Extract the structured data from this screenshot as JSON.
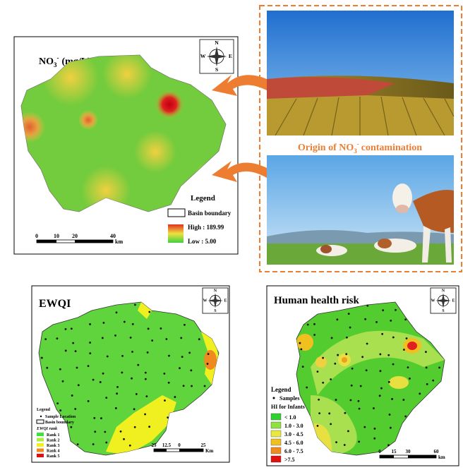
{
  "no3_map": {
    "title": {
      "base": "NO",
      "sub": "3",
      "sup": "-",
      "unit": "(mg/L)"
    },
    "north": {
      "n": "N",
      "s": "S",
      "e": "E",
      "w": "W"
    },
    "legend": {
      "title": "Legend",
      "boundary": "Basin boundary",
      "high": "High : 189.99",
      "low": "Low : 5.00"
    },
    "scale": {
      "ticks": [
        "0",
        "10",
        "20",
        "40"
      ],
      "unit": "km"
    }
  },
  "origin": {
    "label": {
      "pre": "Origin of NO",
      "sub": "3",
      "sup": "-",
      "post": "contamination"
    }
  },
  "ewqi_map": {
    "title": "EWQI",
    "legend": {
      "title": "Legend",
      "sample": "Sample Location",
      "boundary": "Basin boundary",
      "rank_title": "EWQI rank",
      "ranks": [
        "Rank  1",
        "Rank  2",
        "Rank  3",
        "Rank  4",
        "Rank  5"
      ]
    },
    "scale": {
      "ticks": [
        "25",
        "12.5",
        "0",
        "25"
      ],
      "unit": "Km"
    }
  },
  "risk_map": {
    "title": "Human health risk",
    "legend": {
      "title": "Legend",
      "sample": "Samples",
      "hi_title": "HI for Infants",
      "classes": [
        "< 1.0",
        "1.0 - 3.0",
        "3.0 - 4.5",
        "4.5 - 6.0",
        "6.0 - 7.5",
        ">7.5"
      ]
    },
    "scale": {
      "ticks": [
        "0",
        "15",
        "30",
        "60"
      ],
      "unit": "km"
    }
  }
}
